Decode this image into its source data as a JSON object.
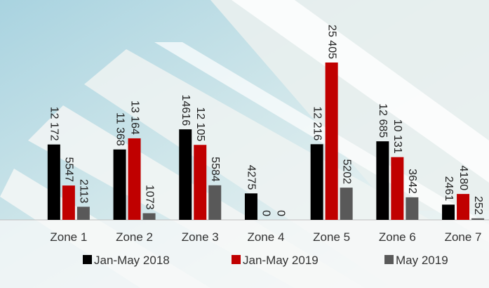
{
  "chart_data": {
    "type": "bar",
    "categories": [
      "Zone 1",
      "Zone 2",
      "Zone 3",
      "Zone 4",
      "Zone 5",
      "Zone 6",
      "Zone 7"
    ],
    "series": [
      {
        "name": "Jan-May 2018",
        "color": "#000000",
        "values": [
          12172,
          11368,
          14616,
          4275,
          12216,
          12685,
          2461
        ],
        "value_labels": [
          "12 172",
          "11 368",
          "14616",
          "4275",
          "12 216",
          "12 685",
          "2461"
        ]
      },
      {
        "name": "Jan-May 2019",
        "color": "#c00000",
        "values": [
          5547,
          13164,
          12105,
          0,
          25405,
          10131,
          4180
        ],
        "value_labels": [
          "5547",
          "13 164",
          "12 105",
          "0",
          "25 405",
          "10 131",
          "4180"
        ]
      },
      {
        "name": "May 2019",
        "color": "#595959",
        "values": [
          2113,
          1073,
          5584,
          0,
          5202,
          3642,
          252
        ],
        "value_labels": [
          "2113",
          "1073",
          "5584",
          "0",
          "5202",
          "3642",
          "252"
        ]
      }
    ],
    "legend": "bottom"
  }
}
